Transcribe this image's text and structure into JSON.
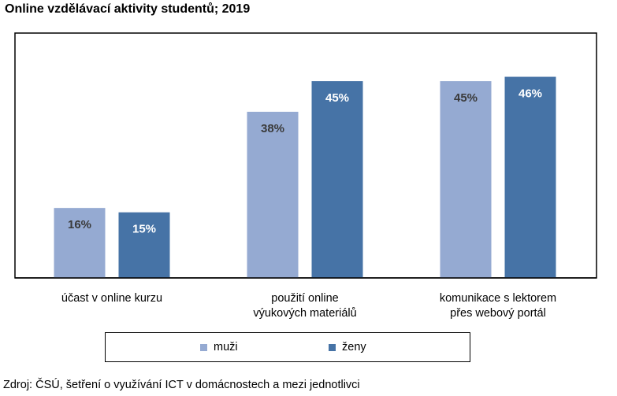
{
  "title": "Online vzdělávací aktivity studentů; 2019",
  "source": "Zdroj: ČSÚ, šetření o využívání ICT v domácnostech a mezi jednotlivci",
  "colors": {
    "muzi": "#95aad2",
    "zeny": "#4673a6",
    "label_light": "#3a3a3a",
    "label_dark": "#ffffff"
  },
  "chart_data": {
    "type": "bar",
    "title": "Online vzdělávací aktivity studentů; 2019",
    "categories": [
      [
        "účast v online kurzu"
      ],
      [
        "použití online",
        "výukových materiálů"
      ],
      [
        "komunikace s lektorem",
        "přes webový portál"
      ]
    ],
    "series": [
      {
        "name": "muži",
        "values": [
          16,
          38,
          45
        ],
        "labels": [
          "16%",
          "38%",
          "45%"
        ]
      },
      {
        "name": "ženy",
        "values": [
          15,
          45,
          46
        ],
        "labels": [
          "15%",
          "45%",
          "46%"
        ]
      }
    ],
    "ylim": [
      0,
      56
    ],
    "grid": false,
    "legend_position": "bottom",
    "unit": "%"
  }
}
